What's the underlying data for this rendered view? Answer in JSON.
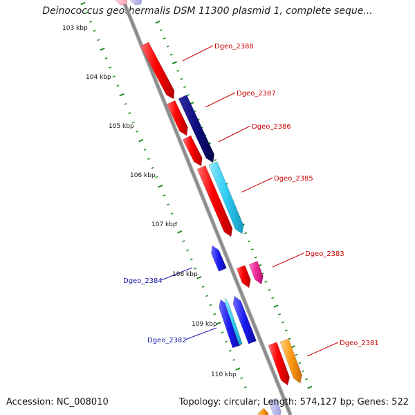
{
  "title": "Deinococcus geothermalis DSM 11300 plasmid 1, complete seque...",
  "accession_text": "Accession: NC_008010",
  "footer_text": "Topology: circular; Length: 574,127 bp; Genes: 522",
  "colors": {
    "backbone": "#8c8c8c",
    "ticks": "#1e8c1e",
    "label_red": "#cc0000",
    "label_blue": "#1a1aa8",
    "gene_red": "#ff0000",
    "gene_navy": "#0d0d80",
    "gene_cyan": "#2ecbf2",
    "gene_blue": "#1a1aee",
    "gene_magenta": "#ee2a9a",
    "gene_orange": "#ff9a14"
  },
  "scale": {
    "unit": "kbp",
    "labels": [
      "103 kbp",
      "104 kbp",
      "105 kbp",
      "106 kbp",
      "107 kbp",
      "108 kbp",
      "109 kbp",
      "110 kbp"
    ]
  },
  "gene_labels": [
    {
      "name": "Dgeo_2388",
      "strand": "forward"
    },
    {
      "name": "Dgeo_2387",
      "strand": "forward"
    },
    {
      "name": "Dgeo_2386",
      "strand": "forward"
    },
    {
      "name": "Dgeo_2385",
      "strand": "forward"
    },
    {
      "name": "Dgeo_2383",
      "strand": "forward"
    },
    {
      "name": "Dgeo_2384",
      "strand": "reverse"
    },
    {
      "name": "Dgeo_2382",
      "strand": "reverse"
    },
    {
      "name": "Dgeo_2381",
      "strand": "forward"
    }
  ]
}
